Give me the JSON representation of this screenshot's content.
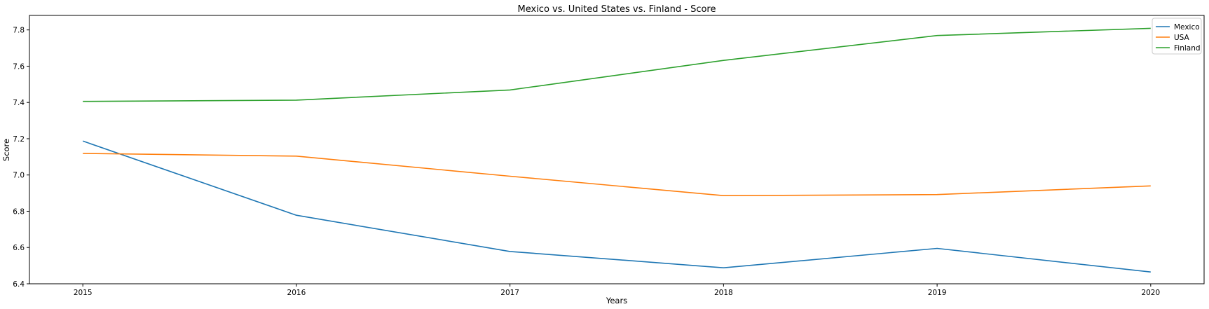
{
  "chart_data": {
    "type": "line",
    "title": "Mexico vs. United States vs. Finland - Score",
    "xlabel": "Years",
    "ylabel": "Score",
    "x": [
      2015,
      2016,
      2017,
      2018,
      2019,
      2020
    ],
    "x_ticks": [
      "2015",
      "2016",
      "2017",
      "2018",
      "2019",
      "2020"
    ],
    "xlim": [
      2014.75,
      2020.25
    ],
    "ylim": [
      6.4,
      7.88
    ],
    "y_ticks": [
      "6.4",
      "6.6",
      "6.8",
      "7.0",
      "7.2",
      "7.4",
      "7.6",
      "7.8"
    ],
    "y_tick_values": [
      6.4,
      6.6,
      6.8,
      7.0,
      7.2,
      7.4,
      7.6,
      7.8
    ],
    "grid": false,
    "legend_position": "top-right",
    "series": [
      {
        "name": "Mexico",
        "color": "#1f77b4",
        "values": [
          7.187,
          6.778,
          6.578,
          6.488,
          6.595,
          6.465
        ]
      },
      {
        "name": "USA",
        "color": "#ff7f0e",
        "values": [
          7.119,
          7.104,
          6.993,
          6.886,
          6.892,
          6.94
        ]
      },
      {
        "name": "Finland",
        "color": "#2ca02c",
        "values": [
          7.406,
          7.413,
          7.469,
          7.632,
          7.769,
          7.809
        ]
      }
    ]
  }
}
